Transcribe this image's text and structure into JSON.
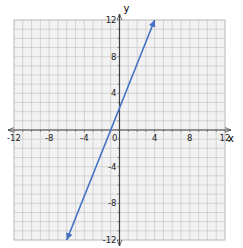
{
  "chart_data": {
    "type": "line",
    "x": [
      -6,
      4
    ],
    "values": [
      -12,
      12
    ],
    "color": "#4472c4",
    "xlabel": "x",
    "ylabel": "y",
    "xlim": [
      -12,
      12
    ],
    "ylim": [
      -12,
      12
    ],
    "xticks": [
      -12,
      {
        "value": -11,
        "label": null
      },
      {
        "value": -10,
        "label": null
      },
      {
        "value": -9,
        "label": null
      },
      -8,
      {
        "value": -7,
        "label": null
      },
      {
        "value": -6,
        "label": null
      },
      {
        "value": -5,
        "label": null
      },
      -4,
      {
        "value": -3,
        "label": null
      },
      {
        "value": -2,
        "label": null
      },
      {
        "value": -1,
        "label": null
      },
      0,
      {
        "value": 1,
        "label": null
      },
      {
        "value": 2,
        "label": null
      },
      {
        "value": 3,
        "label": null
      },
      4,
      {
        "value": 5,
        "label": null
      },
      {
        "value": 6,
        "label": null
      },
      {
        "value": 7,
        "label": null
      },
      8,
      {
        "value": 9,
        "label": null
      },
      {
        "value": 10,
        "label": null
      },
      {
        "value": 11,
        "label": null
      },
      12
    ],
    "yticks": [
      -12,
      {
        "value": -11,
        "label": null
      },
      {
        "value": -10,
        "label": null
      },
      {
        "value": -9,
        "label": null
      },
      -8,
      {
        "value": -7,
        "label": null
      },
      {
        "value": -6,
        "label": null
      },
      {
        "value": -5,
        "label": null
      },
      -4,
      {
        "value": -3,
        "label": null
      },
      {
        "value": -2,
        "label": null
      },
      {
        "value": -1,
        "label": null
      },
      {
        "value": 0,
        "label": null
      },
      {
        "value": 1,
        "label": null
      },
      {
        "value": 2,
        "label": null
      },
      {
        "value": 3,
        "label": null
      },
      4,
      {
        "value": 5,
        "label": null
      },
      {
        "value": 6,
        "label": null
      },
      {
        "value": 7,
        "label": null
      },
      8,
      {
        "value": 9,
        "label": null
      },
      {
        "value": 10,
        "label": null
      },
      {
        "value": 11,
        "label": null
      },
      12
    ],
    "grid": true
  }
}
